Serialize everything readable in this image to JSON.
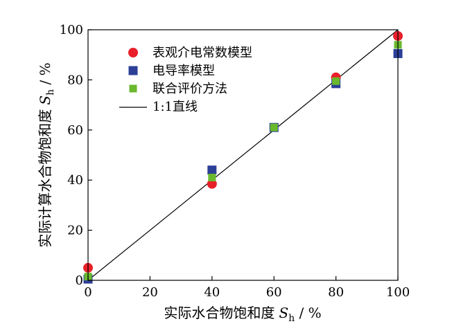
{
  "chart_data": {
    "type": "scatter",
    "title": "",
    "xlabel": {
      "text": "实际水合物饱和度",
      "var": "S",
      "sub": "h",
      "unit": " / %"
    },
    "ylabel": {
      "text": "实际计算水合物饱和度",
      "var": "S",
      "sub": "h",
      "unit": " / %"
    },
    "xlim": [
      0,
      100
    ],
    "ylim": [
      0,
      100
    ],
    "xticks": [
      "0",
      "20",
      "40",
      "60",
      "80",
      "100"
    ],
    "yticks": [
      "0",
      "20",
      "40",
      "60",
      "80",
      "100"
    ],
    "grid": false,
    "legend_position": "top-left",
    "series": [
      {
        "name": "表观介电常数模型",
        "marker": "circle",
        "color": "#e8202a",
        "points": [
          [
            0,
            5
          ],
          [
            40,
            38.5
          ],
          [
            80,
            81
          ],
          [
            100,
            97.5
          ]
        ]
      },
      {
        "name": "电导率模型",
        "marker": "square",
        "color": "#2b3f97",
        "points": [
          [
            0,
            0.5
          ],
          [
            40,
            44
          ],
          [
            60,
            61
          ],
          [
            80,
            78.5
          ],
          [
            100,
            90.5
          ]
        ]
      },
      {
        "name": "联合评价方法",
        "marker": "square-small",
        "color": "#6ab92d",
        "points": [
          [
            0,
            1.5
          ],
          [
            40,
            41
          ],
          [
            60,
            61
          ],
          [
            80,
            79.5
          ],
          [
            100,
            94
          ]
        ]
      }
    ],
    "reference_line": {
      "name": "1:1直线",
      "color": "#000000",
      "points": [
        [
          0,
          0
        ],
        [
          100,
          100
        ]
      ]
    }
  }
}
